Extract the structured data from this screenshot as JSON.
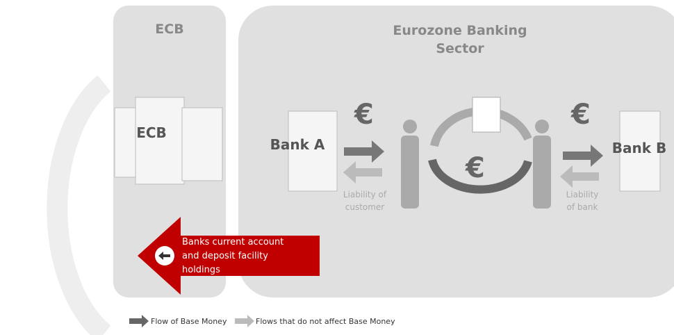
{
  "ecb_panel": {
    "title": "ECB",
    "building_label": "ECB"
  },
  "sector_panel": {
    "title_line1": "Eurozone Banking",
    "title_line2": "Sector",
    "bank_a": "Bank A",
    "bank_b": "Bank B",
    "liability_customer_line1": "Liability of",
    "liability_customer_line2": "customer",
    "liability_bank_line1": "Liability",
    "liability_bank_line2": "of bank"
  },
  "red_arrow": {
    "line1": "Banks current account",
    "line2": "and deposit  facility",
    "line3": "holdings"
  },
  "legend": {
    "dark": "Flow of Base Money",
    "light": "Flows that do not affect Base Money"
  }
}
